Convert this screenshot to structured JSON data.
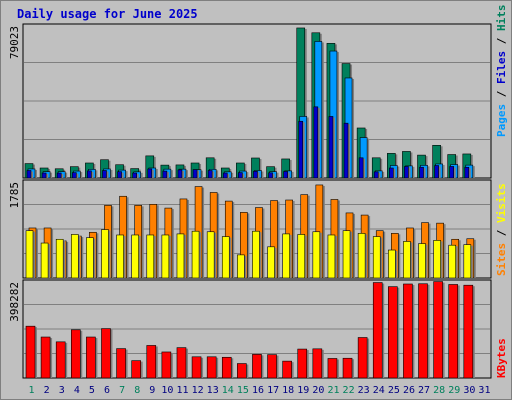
{
  "title": "Daily usage for June 2025",
  "colors": {
    "pages": "#0099ff",
    "files": "#0000cc",
    "hits": "#00805c",
    "visits": "#ffff00",
    "sites": "#ff8000",
    "kbytes": "#ff0000",
    "weekend_day_label": "#00805c",
    "weekday_label": "#000080",
    "title": "#0000cc",
    "panel_bg": "#c0c0c0",
    "grid": "#808080"
  },
  "chart_data": [
    {
      "type": "bar",
      "name": "hits-files-pages",
      "ymax_label": "79023",
      "ylim": [
        0,
        79023
      ],
      "grid": true,
      "legend": [
        "Pages",
        "Files",
        "Hits"
      ],
      "legend_colors": [
        "#0099ff",
        "#0000cc",
        "#00805c"
      ],
      "series": [
        {
          "name": "Hits",
          "values": [
            7500,
            5200,
            4800,
            5900,
            7800,
            9500,
            6900,
            4900,
            11500,
            6700,
            6800,
            7800,
            10500,
            5200,
            7800,
            10400,
            5900,
            9900,
            78000,
            75500,
            70000,
            59500,
            26000,
            10500,
            12800,
            13800,
            11900,
            17000,
            12200,
            12500
          ]
        },
        {
          "name": "Files",
          "values": [
            3900,
            2600,
            2600,
            2800,
            3700,
            3900,
            3300,
            2600,
            4700,
            3600,
            4200,
            4400,
            3900,
            2600,
            2800,
            3500,
            2700,
            3400,
            29500,
            37000,
            32000,
            28500,
            10500,
            3200,
            5200,
            6000,
            5600,
            6500,
            6000,
            5600
          ]
        },
        {
          "name": "Pages",
          "values": [
            4700,
            3300,
            3300,
            3600,
            4500,
            4700,
            4100,
            3200,
            5200,
            4600,
            4600,
            4300,
            4500,
            3200,
            3600,
            3900,
            3300,
            3700,
            32000,
            71000,
            66000,
            52000,
            21000,
            3700,
            6500,
            6300,
            6600,
            7300,
            7000,
            6700
          ]
        }
      ]
    },
    {
      "type": "bar",
      "name": "visits-sites",
      "ymax_label": "1785",
      "ylim": [
        0,
        1785
      ],
      "grid": true,
      "legend": [
        "Sites",
        "Visits"
      ],
      "legend_colors": [
        "#ff8000",
        "#ffff00"
      ],
      "series": [
        {
          "name": "Visits",
          "values": [
            880,
            650,
            720,
            810,
            750,
            900,
            800,
            800,
            800,
            800,
            820,
            870,
            860,
            770,
            430,
            870,
            580,
            820,
            810,
            860,
            800,
            880,
            830,
            770,
            520,
            680,
            640,
            700,
            610,
            620
          ]
        },
        {
          "name": "Sites",
          "values": [
            930,
            930,
            690,
            780,
            850,
            1350,
            1520,
            1350,
            1370,
            1300,
            1470,
            1700,
            1590,
            1430,
            1220,
            1310,
            1440,
            1450,
            1550,
            1730,
            1460,
            1210,
            1170,
            880,
            830,
            930,
            1030,
            1020,
            720,
            730
          ]
        }
      ]
    },
    {
      "type": "bar",
      "name": "kbytes",
      "ymax_label": "398282",
      "ylim": [
        0,
        398282
      ],
      "grid": true,
      "legend": [
        "KBytes"
      ],
      "legend_colors": [
        "#ff0000"
      ],
      "series": [
        {
          "name": "KBytes",
          "values": [
            215000,
            170000,
            150000,
            200000,
            170000,
            205000,
            122000,
            72000,
            135000,
            108000,
            126000,
            88000,
            88000,
            86000,
            60000,
            98000,
            97000,
            70000,
            120000,
            121000,
            81000,
            82000,
            168000,
            396000,
            379000,
            390000,
            391000,
            400000,
            388000,
            385000
          ]
        }
      ]
    }
  ],
  "days": [
    "1",
    "2",
    "3",
    "4",
    "5",
    "6",
    "7",
    "8",
    "9",
    "10",
    "11",
    "12",
    "13",
    "14",
    "15",
    "16",
    "17",
    "18",
    "19",
    "20",
    "21",
    "22",
    "23",
    "24",
    "25",
    "26",
    "27",
    "28",
    "29",
    "30",
    "31"
  ],
  "weekend_days": [
    1,
    7,
    8,
    14,
    15,
    21,
    22,
    28,
    29
  ]
}
